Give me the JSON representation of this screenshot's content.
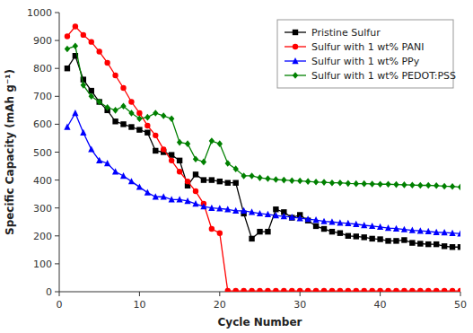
{
  "chart_data": {
    "type": "line",
    "xlabel": "Cycle Number",
    "ylabel": "Specific Capacity (mAh g⁻¹)",
    "xlim": [
      0,
      50
    ],
    "ylim": [
      0,
      1000
    ],
    "xticks": [
      0,
      10,
      20,
      30,
      40,
      50
    ],
    "yticks": [
      0,
      100,
      200,
      300,
      400,
      500,
      600,
      700,
      800,
      900,
      1000
    ],
    "grid": false,
    "legend": "upper right",
    "x": [
      1,
      2,
      3,
      4,
      5,
      6,
      7,
      8,
      9,
      10,
      11,
      12,
      13,
      14,
      15,
      16,
      17,
      18,
      19,
      20,
      21,
      22,
      23,
      24,
      25,
      26,
      27,
      28,
      29,
      30,
      31,
      32,
      33,
      34,
      35,
      36,
      37,
      38,
      39,
      40,
      41,
      42,
      43,
      44,
      45,
      46,
      47,
      48,
      49,
      50
    ],
    "series": [
      {
        "name": "Pristine Sulfur",
        "color": "#000000",
        "marker": "square",
        "values": [
          800,
          845,
          760,
          720,
          680,
          650,
          610,
          600,
          590,
          580,
          570,
          505,
          500,
          490,
          470,
          380,
          420,
          400,
          400,
          395,
          390,
          390,
          280,
          190,
          215,
          215,
          295,
          285,
          265,
          275,
          255,
          235,
          225,
          215,
          210,
          200,
          198,
          195,
          190,
          188,
          182,
          182,
          185,
          175,
          172,
          170,
          170,
          163,
          160,
          160
        ]
      },
      {
        "name": "Sulfur with 1 wt% PANI",
        "color": "#ff0000",
        "marker": "circle",
        "values": [
          915,
          950,
          920,
          895,
          860,
          820,
          775,
          730,
          680,
          640,
          595,
          560,
          510,
          470,
          430,
          395,
          360,
          315,
          225,
          210,
          3,
          3,
          3,
          3,
          3,
          3,
          3,
          3,
          3,
          3,
          3,
          3,
          3,
          3,
          3,
          3,
          3,
          3,
          3,
          3,
          3,
          3,
          3,
          3,
          3,
          3,
          3,
          3,
          3,
          3
        ]
      },
      {
        "name": "Sulfur with 1 wt% PPy",
        "color": "#0000ff",
        "marker": "triangle",
        "values": [
          590,
          640,
          570,
          510,
          470,
          460,
          430,
          415,
          395,
          375,
          355,
          340,
          340,
          330,
          330,
          325,
          315,
          305,
          300,
          298,
          295,
          290,
          290,
          285,
          280,
          277,
          273,
          270,
          267,
          263,
          260,
          257,
          252,
          250,
          247,
          245,
          242,
          238,
          235,
          232,
          228,
          226,
          223,
          220,
          218,
          216,
          213,
          212,
          210,
          208
        ]
      },
      {
        "name": "Sulfur with 1 wt% PEDOT:PSS",
        "color": "#008000",
        "marker": "diamond",
        "values": [
          870,
          880,
          740,
          700,
          680,
          660,
          650,
          665,
          640,
          620,
          625,
          640,
          630,
          620,
          535,
          530,
          475,
          465,
          540,
          530,
          460,
          440,
          415,
          415,
          408,
          405,
          402,
          400,
          398,
          397,
          395,
          393,
          392,
          390,
          390,
          388,
          387,
          387,
          386,
          385,
          385,
          384,
          383,
          382,
          381,
          381,
          380,
          378,
          377,
          375
        ]
      }
    ]
  }
}
